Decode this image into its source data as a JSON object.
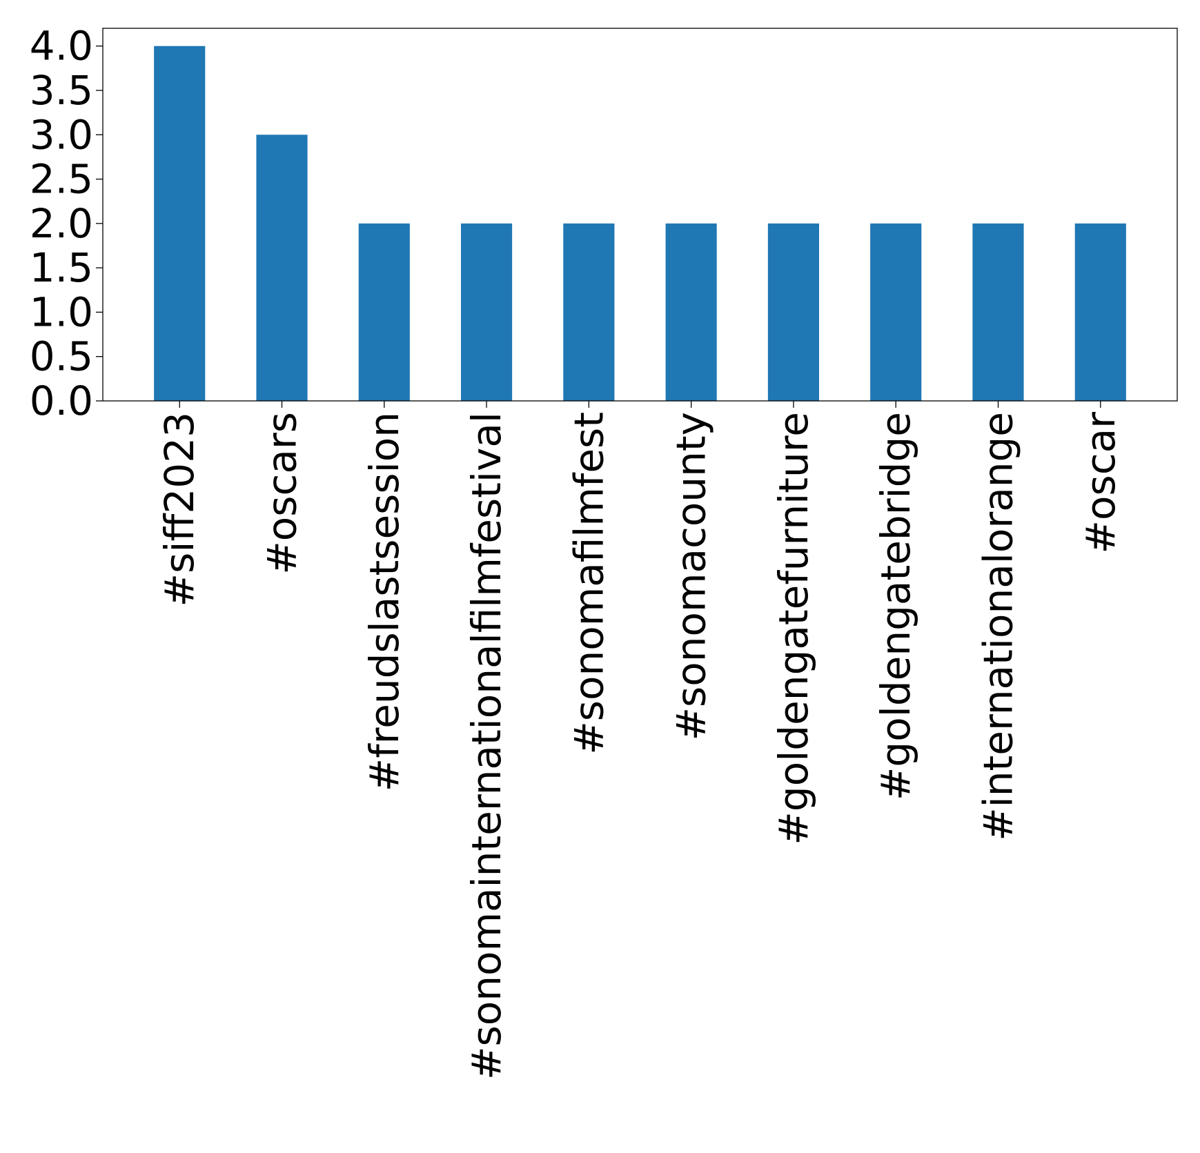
{
  "chart_data": {
    "type": "bar",
    "title": "",
    "xlabel": "",
    "ylabel": "",
    "categories": [
      "#siff2023",
      "#oscars",
      "#freudslastsession",
      "#sonomainternationalfilmfestival",
      "#sonomafilmfest",
      "#sonomacounty",
      "#goldengatefurniture",
      "#goldengatebridge",
      "#internationalorange",
      "#oscar"
    ],
    "values": [
      4,
      3,
      2,
      2,
      2,
      2,
      2,
      2,
      2,
      2
    ],
    "ylim": [
      0,
      4.2
    ],
    "yticks": [
      "0.0",
      "0.5",
      "1.0",
      "1.5",
      "2.0",
      "2.5",
      "3.0",
      "3.5",
      "4.0"
    ],
    "grid": false,
    "legend": "none",
    "bar_color": "#1f77b4",
    "xtick_rotation": "vertical"
  }
}
